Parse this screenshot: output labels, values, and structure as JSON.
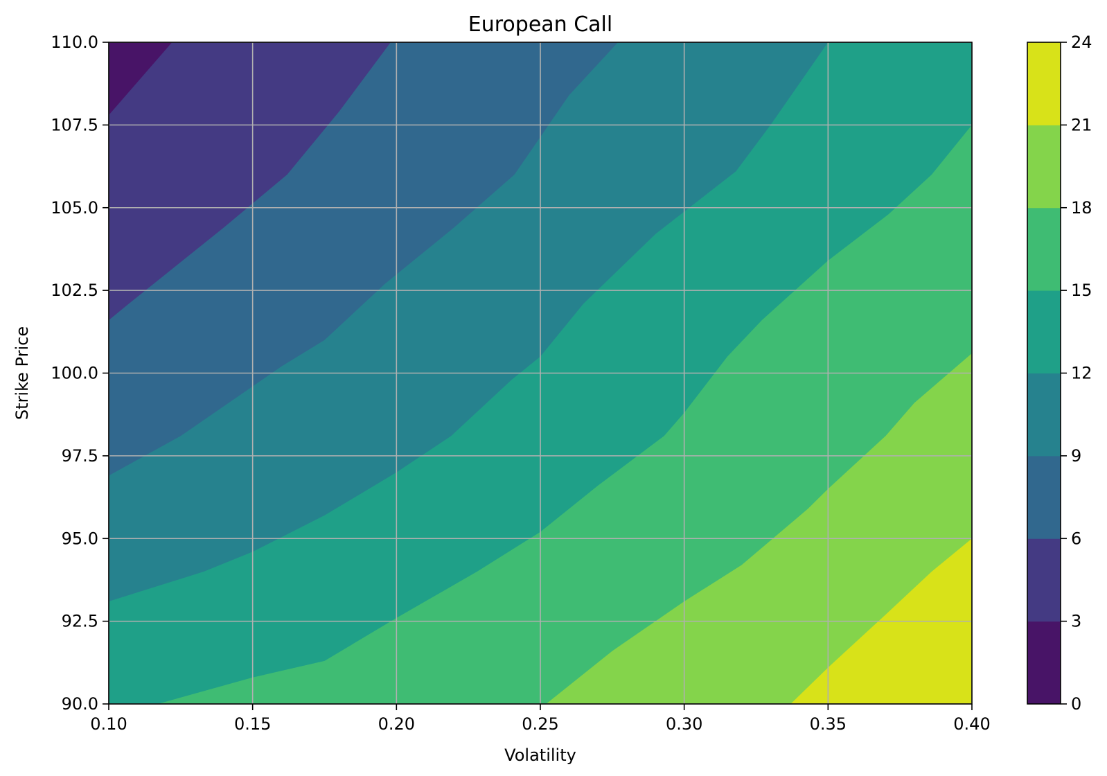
{
  "chart_data": {
    "type": "contourf",
    "title": "European Call",
    "xlabel": "Volatility",
    "ylabel": "Strike Price",
    "xlim": [
      0.1,
      0.4
    ],
    "ylim": [
      90.0,
      110.0
    ],
    "x_ticks": [
      "0.10",
      "0.15",
      "0.20",
      "0.25",
      "0.30",
      "0.35",
      "0.40"
    ],
    "y_ticks": [
      "90.0",
      "92.5",
      "95.0",
      "97.5",
      "100.0",
      "102.5",
      "105.0",
      "107.5",
      "110.0"
    ],
    "grid": true,
    "colormap": "viridis",
    "levels": [
      0,
      3,
      6,
      9,
      12,
      15,
      18,
      21,
      24
    ],
    "level_colors": [
      "#481467",
      "#443a83",
      "#31688e",
      "#26828e",
      "#1fa088",
      "#3fbc73",
      "#84d44b",
      "#d8e219"
    ],
    "colorbar_ticks": [
      "0",
      "3",
      "6",
      "9",
      "12",
      "15",
      "18",
      "21",
      "24"
    ],
    "contours": [
      {
        "level": 3,
        "points": [
          [
            0.1,
            107.8
          ],
          [
            0.122,
            110.0
          ]
        ]
      },
      {
        "level": 6,
        "points": [
          [
            0.1,
            101.6
          ],
          [
            0.107,
            102.1
          ],
          [
            0.14,
            104.4
          ],
          [
            0.162,
            106.0
          ],
          [
            0.18,
            107.9
          ],
          [
            0.198,
            110.0
          ]
        ]
      },
      {
        "level": 9,
        "points": [
          [
            0.1,
            96.9
          ],
          [
            0.125,
            98.1
          ],
          [
            0.15,
            99.6
          ],
          [
            0.16,
            100.2
          ],
          [
            0.175,
            101.0
          ],
          [
            0.196,
            102.7
          ],
          [
            0.22,
            104.4
          ],
          [
            0.241,
            106.0
          ],
          [
            0.26,
            108.4
          ],
          [
            0.277,
            110.0
          ]
        ]
      },
      {
        "level": 12,
        "points": [
          [
            0.1,
            93.1
          ],
          [
            0.133,
            94.0
          ],
          [
            0.15,
            94.6
          ],
          [
            0.175,
            95.7
          ],
          [
            0.2,
            97.0
          ],
          [
            0.219,
            98.1
          ],
          [
            0.24,
            99.8
          ],
          [
            0.25,
            100.5
          ],
          [
            0.265,
            102.1
          ],
          [
            0.29,
            104.2
          ],
          [
            0.318,
            106.1
          ],
          [
            0.33,
            107.5
          ],
          [
            0.35,
            110.0
          ]
        ]
      },
      {
        "level": 15,
        "points": [
          [
            0.117,
            90.0
          ],
          [
            0.15,
            90.8
          ],
          [
            0.175,
            91.3
          ],
          [
            0.2,
            92.6
          ],
          [
            0.228,
            94.0
          ],
          [
            0.25,
            95.2
          ],
          [
            0.27,
            96.6
          ],
          [
            0.293,
            98.1
          ],
          [
            0.3,
            98.8
          ],
          [
            0.315,
            100.5
          ],
          [
            0.327,
            101.6
          ],
          [
            0.35,
            103.4
          ],
          [
            0.371,
            104.8
          ],
          [
            0.386,
            106.0
          ],
          [
            0.4,
            107.5
          ]
        ]
      },
      {
        "level": 18,
        "points": [
          [
            0.252,
            90.0
          ],
          [
            0.275,
            91.6
          ],
          [
            0.3,
            93.1
          ],
          [
            0.32,
            94.2
          ],
          [
            0.343,
            95.9
          ],
          [
            0.35,
            96.5
          ],
          [
            0.37,
            98.1
          ],
          [
            0.38,
            99.1
          ],
          [
            0.4,
            100.6
          ]
        ]
      },
      {
        "level": 21,
        "points": [
          [
            0.337,
            90.0
          ],
          [
            0.35,
            91.1
          ],
          [
            0.37,
            92.7
          ],
          [
            0.386,
            94.0
          ],
          [
            0.4,
            95.0
          ]
        ]
      }
    ]
  }
}
